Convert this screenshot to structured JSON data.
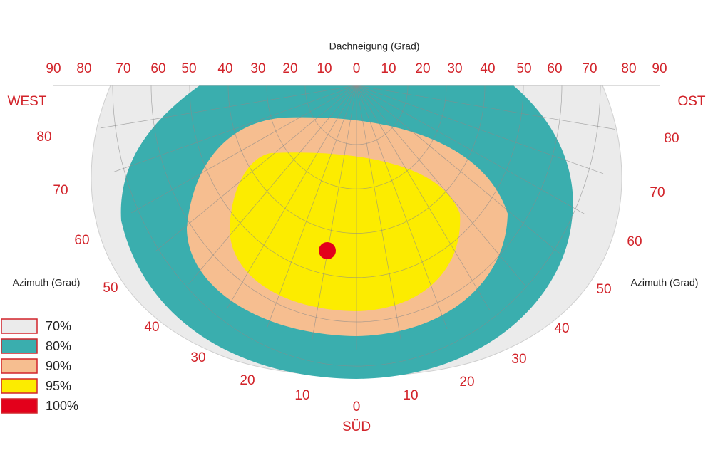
{
  "dachneigung": {
    "title": "Dachneigung (Grad)",
    "ticks": [
      90,
      80,
      70,
      60,
      50,
      40,
      30,
      20,
      10,
      0,
      10,
      20,
      30,
      40,
      50,
      60,
      70,
      80,
      90
    ]
  },
  "azimuth": {
    "title_left": "Azimuth (Grad)",
    "title_right": "Azimuth (Grad)",
    "west": "WEST",
    "east": "OST",
    "south": "SÜD",
    "ticks": [
      80,
      70,
      60,
      50,
      40,
      30,
      20,
      10,
      0,
      10,
      20,
      30,
      40,
      50,
      60,
      70,
      80
    ]
  },
  "legend": [
    {
      "label": "70%",
      "color": "#ebebeb"
    },
    {
      "label": "80%",
      "color": "#3aaeae"
    },
    {
      "label": "90%",
      "color": "#f6be90"
    },
    {
      "label": "95%",
      "color": "#fcec00"
    },
    {
      "label": "100%",
      "color": "#e3001b"
    }
  ]
}
